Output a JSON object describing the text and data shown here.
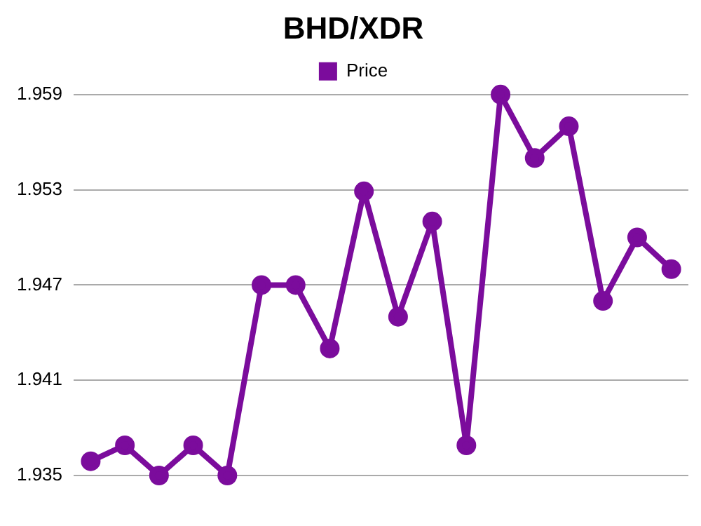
{
  "chart_data": {
    "type": "line",
    "title": "BHD/XDR",
    "categories": [
      null,
      null,
      null,
      null,
      null,
      null,
      null,
      null,
      null,
      null,
      null,
      null,
      null,
      null,
      null,
      null,
      null,
      null
    ],
    "series": [
      {
        "name": "Price",
        "color": "#7b0c9c",
        "values": [
          1.9359,
          1.9369,
          1.935,
          1.9369,
          1.935,
          1.947,
          1.947,
          1.943,
          1.9529,
          1.945,
          1.951,
          1.9369,
          1.959,
          1.955,
          1.957,
          1.946,
          1.95,
          1.948
        ]
      }
    ],
    "ylim": [
      1.935,
      1.959
    ],
    "yticks": [
      1.935,
      1.941,
      1.947,
      1.953,
      1.959
    ],
    "grid": "y",
    "legend": "top",
    "marker": "circle",
    "line_style": "solid",
    "tick_labels": "y"
  }
}
